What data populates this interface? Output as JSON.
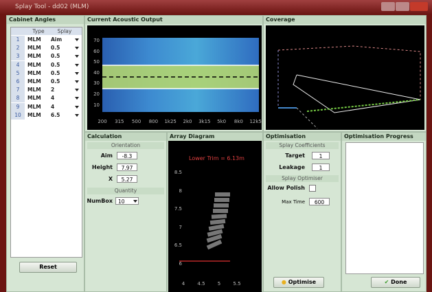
{
  "window": {
    "title": "Splay Tool - dd02 (MLM)"
  },
  "cabinet_angles": {
    "title": "Cabinet Angles",
    "columns": [
      "Type",
      "Splay"
    ],
    "rows": [
      [
        "1",
        "MLM",
        "Aim"
      ],
      [
        "2",
        "MLM",
        "0.5"
      ],
      [
        "3",
        "MLM",
        "0.5"
      ],
      [
        "4",
        "MLM",
        "0.5"
      ],
      [
        "5",
        "MLM",
        "0.5"
      ],
      [
        "6",
        "MLM",
        "0.5"
      ],
      [
        "7",
        "MLM",
        "2"
      ],
      [
        "8",
        "MLM",
        "4"
      ],
      [
        "9",
        "MLM",
        "4"
      ],
      [
        "10",
        "MLM",
        "6.5"
      ]
    ],
    "button": "Reset"
  },
  "acoustic_output": {
    "title": "Current Acoustic Output",
    "y_labels": [
      "70",
      "60",
      "50",
      "40",
      "30",
      "20",
      "10"
    ],
    "x_labels": [
      "200",
      "315",
      "500",
      "800",
      "1k25",
      "2k0",
      "3k15",
      "5k0",
      "8k0",
      "12k5"
    ]
  },
  "coverage": {
    "title": "Coverage"
  },
  "calculation": {
    "title": "Calculation",
    "orientation": "Orientation",
    "fields": [
      {
        "label": "Aim",
        "value": "-8.3"
      },
      {
        "label": "Height",
        "value": "7.97"
      },
      {
        "label": "X",
        "value": "5.27"
      }
    ],
    "quantity": "Quantity",
    "numbox": {
      "label": "NumBox",
      "value": "10"
    }
  },
  "array_diagram": {
    "title": "Array Diagram",
    "annotation": "Lower Trim = 6.13m",
    "y_labels": [
      "8.5",
      "8",
      "7.5",
      "7",
      "6.5",
      "6"
    ],
    "x_labels": [
      "4",
      "4.5",
      "5",
      "5.5"
    ]
  },
  "optimisation": {
    "title": "Optimisation",
    "coefficients": "Splay Coefficients",
    "fields": [
      {
        "label": "Target",
        "value": "1"
      },
      {
        "label": "Leakage",
        "value": "1"
      }
    ],
    "optimiser": "Splay Optimiser",
    "allow_polish": "Allow Polish",
    "max_time": {
      "label": "Max Time",
      "value": "600"
    }
  },
  "progress": {
    "title": "Optimisation Progress"
  },
  "buttons": {
    "optimise": "Optimise",
    "done": "Done"
  }
}
